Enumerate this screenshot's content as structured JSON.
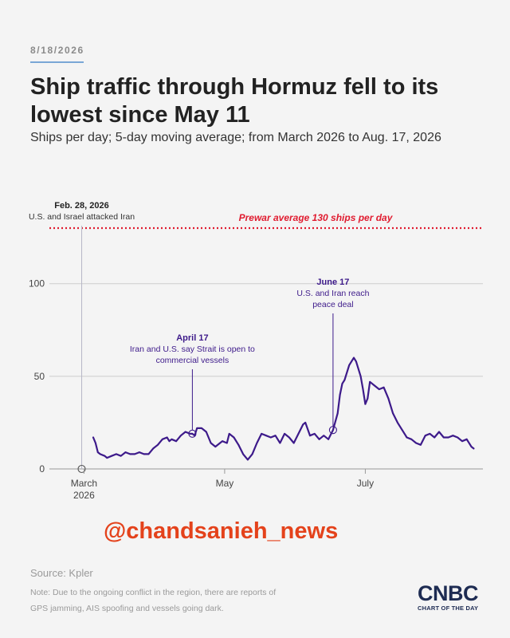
{
  "header": {
    "date": "8/18/2026",
    "title": "Ship traffic through Hormuz fell to its lowest since May 11",
    "subtitle": "Ships per day; 5-day moving average; from March 2026 to Aug. 17, 2026"
  },
  "colors": {
    "line": "#3d1a8a",
    "prewar": "#e01b2f",
    "annotation_date": "#3d1a8a",
    "grid": "#cccccc",
    "watermark": "#e4421b",
    "logo": "#1d2b52"
  },
  "chart_data": {
    "type": "line",
    "title": "Ship traffic through Hormuz fell to its lowest since May 11",
    "subtitle": "Ships per day; 5-day moving average; from March 2026 to Aug. 17, 2026",
    "xlabel": "",
    "ylabel": "",
    "ylim": [
      0,
      130
    ],
    "xlim": [
      "2026-02-14",
      "2026-08-21"
    ],
    "yticks": [
      0,
      50,
      100
    ],
    "xticks": [
      {
        "date": "2026-03-01",
        "label": "March",
        "sublabel": "2026"
      },
      {
        "date": "2026-05-01",
        "label": "May",
        "sublabel": ""
      },
      {
        "date": "2026-07-01",
        "label": "July",
        "sublabel": ""
      }
    ],
    "grid": true,
    "reference_line": {
      "value": 130,
      "label": "Prewar average 130 ships per day"
    },
    "annotations": [
      {
        "date": "2026-02-28",
        "value": 0,
        "label_date": "Feb. 28, 2026",
        "label_text": [
          "U.S. and Israel attacked Iran"
        ]
      },
      {
        "date": "2026-04-17",
        "value": 19,
        "label_date": "April 17",
        "label_text": [
          "Iran and U.S. say Strait is open to",
          "commercial vessels"
        ]
      },
      {
        "date": "2026-06-17",
        "value": 21,
        "label_date": "June 17",
        "label_text": [
          "U.S. and Iran reach",
          "peace deal"
        ]
      }
    ],
    "series": [
      {
        "name": "",
        "points": [
          [
            "2026-03-05",
            17
          ],
          [
            "2026-03-06",
            14
          ],
          [
            "2026-03-07",
            9
          ],
          [
            "2026-03-08",
            8
          ],
          [
            "2026-03-10",
            7
          ],
          [
            "2026-03-11",
            6
          ],
          [
            "2026-03-13",
            7
          ],
          [
            "2026-03-15",
            8
          ],
          [
            "2026-03-17",
            7
          ],
          [
            "2026-03-19",
            9
          ],
          [
            "2026-03-21",
            8
          ],
          [
            "2026-03-23",
            8
          ],
          [
            "2026-03-25",
            9
          ],
          [
            "2026-03-27",
            8
          ],
          [
            "2026-03-29",
            8
          ],
          [
            "2026-03-31",
            11
          ],
          [
            "2026-04-02",
            13
          ],
          [
            "2026-04-04",
            16
          ],
          [
            "2026-04-06",
            17
          ],
          [
            "2026-04-07",
            15
          ],
          [
            "2026-04-08",
            16
          ],
          [
            "2026-04-10",
            15
          ],
          [
            "2026-04-12",
            18
          ],
          [
            "2026-04-14",
            20
          ],
          [
            "2026-04-16",
            19
          ],
          [
            "2026-04-17",
            19
          ],
          [
            "2026-04-18",
            18
          ],
          [
            "2026-04-19",
            22
          ],
          [
            "2026-04-21",
            22
          ],
          [
            "2026-04-23",
            20
          ],
          [
            "2026-04-25",
            14
          ],
          [
            "2026-04-27",
            12
          ],
          [
            "2026-04-29",
            14
          ],
          [
            "2026-04-30",
            15
          ],
          [
            "2026-05-02",
            14
          ],
          [
            "2026-05-03",
            19
          ],
          [
            "2026-05-05",
            17
          ],
          [
            "2026-05-07",
            13
          ],
          [
            "2026-05-09",
            8
          ],
          [
            "2026-05-11",
            5
          ],
          [
            "2026-05-13",
            8
          ],
          [
            "2026-05-15",
            14
          ],
          [
            "2026-05-17",
            19
          ],
          [
            "2026-05-19",
            18
          ],
          [
            "2026-05-21",
            17
          ],
          [
            "2026-05-23",
            18
          ],
          [
            "2026-05-25",
            14
          ],
          [
            "2026-05-27",
            19
          ],
          [
            "2026-05-29",
            17
          ],
          [
            "2026-05-31",
            14
          ],
          [
            "2026-06-02",
            19
          ],
          [
            "2026-06-04",
            24
          ],
          [
            "2026-06-05",
            25
          ],
          [
            "2026-06-07",
            18
          ],
          [
            "2026-06-09",
            19
          ],
          [
            "2026-06-11",
            16
          ],
          [
            "2026-06-13",
            18
          ],
          [
            "2026-06-15",
            16
          ],
          [
            "2026-06-17",
            21
          ],
          [
            "2026-06-19",
            30
          ],
          [
            "2026-06-20",
            40
          ],
          [
            "2026-06-21",
            46
          ],
          [
            "2026-06-22",
            48
          ],
          [
            "2026-06-24",
            56
          ],
          [
            "2026-06-26",
            60
          ],
          [
            "2026-06-27",
            58
          ],
          [
            "2026-06-29",
            50
          ],
          [
            "2026-06-30",
            43
          ],
          [
            "2026-07-01",
            35
          ],
          [
            "2026-07-02",
            38
          ],
          [
            "2026-07-03",
            47
          ],
          [
            "2026-07-05",
            45
          ],
          [
            "2026-07-07",
            43
          ],
          [
            "2026-07-09",
            44
          ],
          [
            "2026-07-11",
            38
          ],
          [
            "2026-07-13",
            30
          ],
          [
            "2026-07-15",
            25
          ],
          [
            "2026-07-17",
            21
          ],
          [
            "2026-07-19",
            17
          ],
          [
            "2026-07-21",
            16
          ],
          [
            "2026-07-23",
            14
          ],
          [
            "2026-07-25",
            13
          ],
          [
            "2026-07-27",
            18
          ],
          [
            "2026-07-29",
            19
          ],
          [
            "2026-07-31",
            17
          ],
          [
            "2026-08-02",
            20
          ],
          [
            "2026-08-04",
            17
          ],
          [
            "2026-08-06",
            17
          ],
          [
            "2026-08-08",
            18
          ],
          [
            "2026-08-10",
            17
          ],
          [
            "2026-08-12",
            15
          ],
          [
            "2026-08-14",
            16
          ],
          [
            "2026-08-16",
            12
          ],
          [
            "2026-08-17",
            11
          ]
        ]
      }
    ]
  },
  "footer": {
    "watermark": "@chandsanieh_news",
    "source": "Source: Kpler",
    "note": "Note: Due to the ongoing conflict in the region, there are reports of GPS jamming, AIS spoofing and vessels going dark.",
    "logo_text": "CNBC",
    "logo_subtext": "CHART OF THE DAY"
  }
}
